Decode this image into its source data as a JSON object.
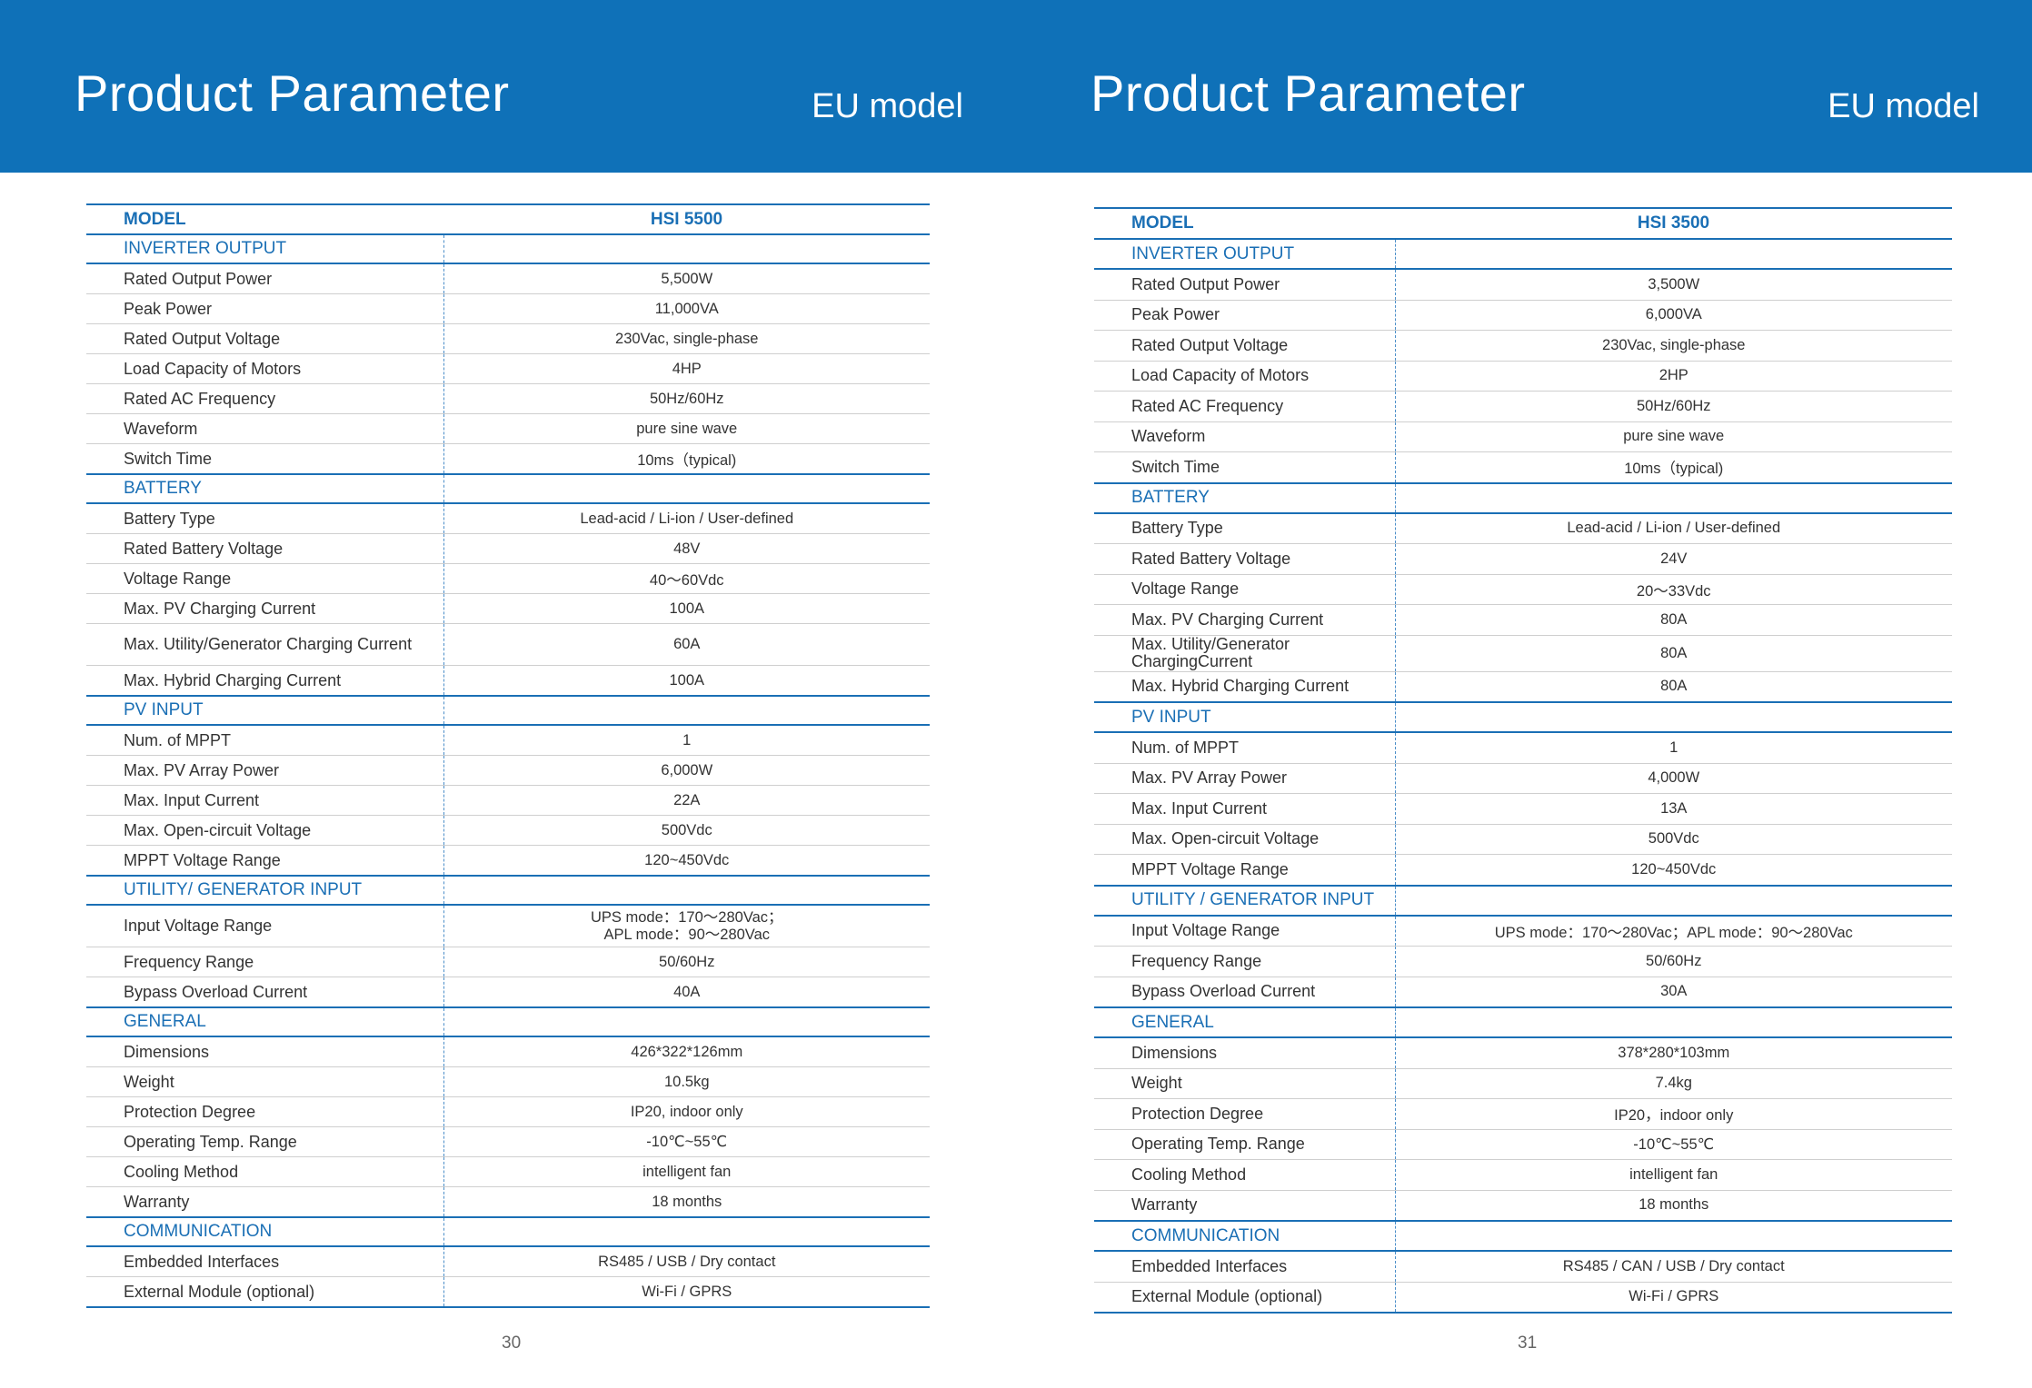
{
  "pages": [
    {
      "title": "Product Parameter",
      "subtitle": "EU model",
      "page_number": "30",
      "model_label": "MODEL",
      "model_value": "HSI 5500",
      "rows": [
        {
          "type": "section",
          "label": "INVERTER OUTPUT"
        },
        {
          "type": "row",
          "label": "Rated Output Power",
          "value": "5,500W"
        },
        {
          "type": "row",
          "label": "Peak Power",
          "value": "11,000VA"
        },
        {
          "type": "row",
          "label": "Rated Output Voltage",
          "value": "230Vac, single-phase"
        },
        {
          "type": "row",
          "label": "Load Capacity of Motors",
          "value": "4HP"
        },
        {
          "type": "row",
          "label": "Rated AC Frequency",
          "value": "50Hz/60Hz"
        },
        {
          "type": "row",
          "label": "Waveform",
          "value": "pure sine wave"
        },
        {
          "type": "row",
          "label": "Switch Time",
          "value": "10ms（typical)"
        },
        {
          "type": "section",
          "label": "BATTERY"
        },
        {
          "type": "row",
          "label": "Battery Type",
          "value": "Lead-acid / Li-ion / User-defined"
        },
        {
          "type": "row",
          "label": "Rated Battery Voltage",
          "value": "48V"
        },
        {
          "type": "row",
          "label": "Voltage Range",
          "value": "40～60Vdc"
        },
        {
          "type": "row",
          "label": "Max. PV Charging Current",
          "value": "100A"
        },
        {
          "type": "row",
          "tall": true,
          "label": "Max. Utility/Generator Charging Current",
          "value": "60A"
        },
        {
          "type": "row",
          "label": "Max. Hybrid Charging Current",
          "value": "100A"
        },
        {
          "type": "section",
          "label": "PV INPUT"
        },
        {
          "type": "row",
          "label": "Num. of MPPT",
          "value": "1"
        },
        {
          "type": "row",
          "label": "Max. PV Array Power",
          "value": "6,000W"
        },
        {
          "type": "row",
          "label": "Max. Input Current",
          "value": "22A"
        },
        {
          "type": "row",
          "label": "Max. Open-circuit Voltage",
          "value": "500Vdc"
        },
        {
          "type": "row",
          "label": "MPPT Voltage Range",
          "value": "120~450Vdc"
        },
        {
          "type": "section",
          "label": "UTILITY/ GENERATOR INPUT"
        },
        {
          "type": "row",
          "tall": true,
          "label": "Input Voltage Range",
          "value": "UPS mode：170～280Vac；",
          "value2": "APL mode：90～280Vac"
        },
        {
          "type": "row",
          "label": "Frequency Range",
          "value": "50/60Hz"
        },
        {
          "type": "row",
          "label": "Bypass Overload Current",
          "value": "40A"
        },
        {
          "type": "section",
          "label": "GENERAL"
        },
        {
          "type": "row",
          "label": "Dimensions",
          "value": "426*322*126mm"
        },
        {
          "type": "row",
          "label": "Weight",
          "value": "10.5kg"
        },
        {
          "type": "row",
          "label": "Protection Degree",
          "value": "IP20, indoor only"
        },
        {
          "type": "row",
          "label": "Operating Temp. Range",
          "value": "-10℃~55℃"
        },
        {
          "type": "row",
          "label": "Cooling Method",
          "value": "intelligent fan"
        },
        {
          "type": "row",
          "label": "Warranty",
          "value": "18 months"
        },
        {
          "type": "section",
          "label": "COMMUNICATION"
        },
        {
          "type": "row",
          "label": "Embedded Interfaces",
          "value": "RS485 / USB / Dry contact"
        },
        {
          "type": "row",
          "label": "External Module (optional)",
          "value": "Wi-Fi / GPRS"
        }
      ]
    },
    {
      "title": "Product Parameter",
      "subtitle": "EU model",
      "page_number": "31",
      "model_label": "MODEL",
      "model_value": "HSI 3500",
      "rows": [
        {
          "type": "section",
          "label": "INVERTER OUTPUT"
        },
        {
          "type": "row",
          "label": "Rated Output Power",
          "value": "3,500W"
        },
        {
          "type": "row",
          "label": "Peak Power",
          "value": "6,000VA"
        },
        {
          "type": "row",
          "label": "Rated Output Voltage",
          "value": "230Vac, single-phase"
        },
        {
          "type": "row",
          "label": "Load Capacity of Motors",
          "value": "2HP"
        },
        {
          "type": "row",
          "label": "Rated AC Frequency",
          "value": "50Hz/60Hz"
        },
        {
          "type": "row",
          "label": "Waveform",
          "value": "pure sine wave"
        },
        {
          "type": "row",
          "label": "Switch Time",
          "value": "10ms（typical)"
        },
        {
          "type": "section",
          "label": "BATTERY"
        },
        {
          "type": "row",
          "label": "Battery Type",
          "value": "Lead-acid / Li-ion / User-defined"
        },
        {
          "type": "row",
          "label": "Rated Battery Voltage",
          "value": "24V"
        },
        {
          "type": "row",
          "label": "Voltage Range",
          "value": "20～33Vdc"
        },
        {
          "type": "row",
          "label": "Max. PV Charging Current",
          "value": "80A"
        },
        {
          "type": "row",
          "tall": true,
          "label": "Max. Utility/Generator Charging",
          "label2": "Current",
          "value": "80A"
        },
        {
          "type": "row",
          "label": "Max. Hybrid Charging Current",
          "value": "80A"
        },
        {
          "type": "section",
          "label": "PV INPUT"
        },
        {
          "type": "row",
          "label": "Num. of MPPT",
          "value": "1"
        },
        {
          "type": "row",
          "label": "Max. PV Array Power",
          "value": "4,000W"
        },
        {
          "type": "row",
          "label": "Max. Input Current",
          "value": "13A"
        },
        {
          "type": "row",
          "label": "Max. Open-circuit Voltage",
          "value": "500Vdc"
        },
        {
          "type": "row",
          "label": "MPPT Voltage Range",
          "value": "120~450Vdc"
        },
        {
          "type": "section",
          "label": "UTILITY / GENERATOR INPUT"
        },
        {
          "type": "row",
          "label": "Input Voltage Range",
          "value": "UPS mode：170～280Vac；APL mode：90～280Vac"
        },
        {
          "type": "row",
          "label": "Frequency Range",
          "value": "50/60Hz"
        },
        {
          "type": "row",
          "label": "Bypass Overload Current",
          "value": "30A"
        },
        {
          "type": "section",
          "label": "GENERAL"
        },
        {
          "type": "row",
          "label": "Dimensions",
          "value": "378*280*103mm"
        },
        {
          "type": "row",
          "label": "Weight",
          "value": "7.4kg"
        },
        {
          "type": "row",
          "label": "Protection Degree",
          "value": "IP20，indoor only"
        },
        {
          "type": "row",
          "label": "Operating Temp. Range",
          "value": "-10℃~55℃"
        },
        {
          "type": "row",
          "label": "Cooling Method",
          "value": "intelligent fan"
        },
        {
          "type": "row",
          "label": "Warranty",
          "value": "18 months"
        },
        {
          "type": "section",
          "label": "COMMUNICATION"
        },
        {
          "type": "row",
          "label": "Embedded Interfaces",
          "value": "RS485 / CAN / USB / Dry contact"
        },
        {
          "type": "row",
          "label": "External Module (optional)",
          "value": "Wi-Fi / GPRS"
        }
      ]
    }
  ],
  "colors": {
    "banner": "#0f71b8",
    "accent": "#1a6fb5"
  }
}
